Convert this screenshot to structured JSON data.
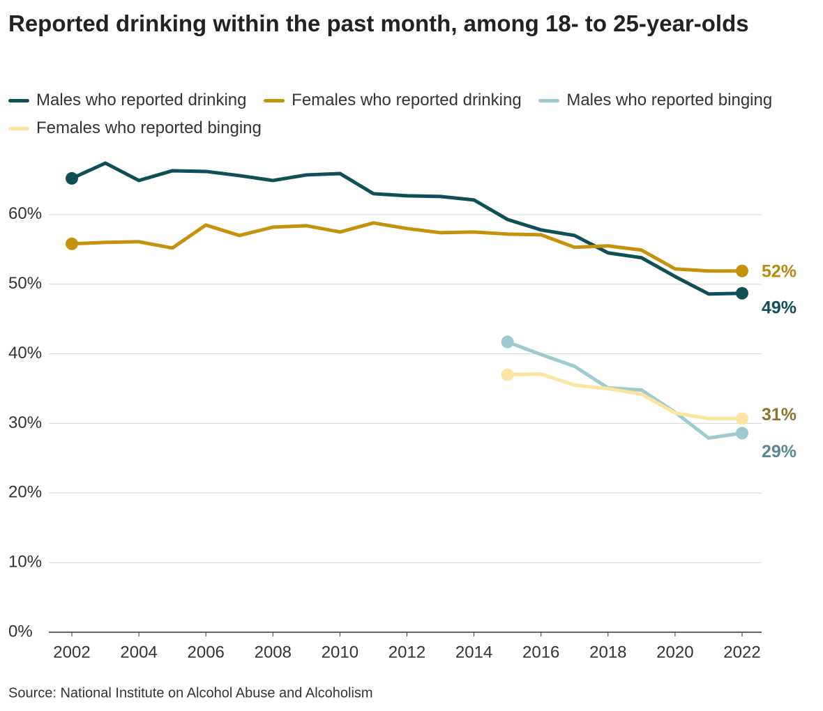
{
  "chart_data": {
    "type": "line",
    "title": "Reported drinking within the past month, among 18- to 25-year-olds",
    "source": "Source: National Institute on Alcohol Abuse and Alcoholism",
    "x": [
      2002,
      2003,
      2004,
      2005,
      2006,
      2007,
      2008,
      2009,
      2010,
      2011,
      2012,
      2013,
      2014,
      2015,
      2016,
      2017,
      2018,
      2019,
      2020,
      2021,
      2022
    ],
    "xlim": [
      2002,
      2022
    ],
    "xticks": [
      2002,
      2004,
      2006,
      2008,
      2010,
      2012,
      2014,
      2016,
      2018,
      2020,
      2022
    ],
    "ylim": [
      0,
      70
    ],
    "yticks": [
      {
        "value": 0,
        "label": "0%"
      },
      {
        "value": 10,
        "label": "10%"
      },
      {
        "value": 20,
        "label": "20%"
      },
      {
        "value": 30,
        "label": "30%"
      },
      {
        "value": 40,
        "label": "40%"
      },
      {
        "value": 50,
        "label": "50%"
      },
      {
        "value": 60,
        "label": "60%"
      }
    ],
    "grid": true,
    "series": [
      {
        "name": "Males who reported drinking",
        "color": "#0f4f57",
        "label_color": "#0f4f57",
        "values": [
          65.2,
          67.4,
          64.9,
          66.3,
          66.2,
          65.6,
          64.9,
          65.7,
          65.9,
          63.0,
          62.7,
          62.6,
          62.1,
          59.3,
          57.8,
          57.0,
          54.5,
          53.8,
          51.1,
          48.6,
          48.7
        ],
        "value_labels": [
          null,
          null,
          null,
          null,
          null,
          null,
          null,
          null,
          null,
          null,
          null,
          null,
          null,
          null,
          null,
          null,
          null,
          null,
          null,
          null,
          "49%"
        ]
      },
      {
        "name": "Females who reported drinking",
        "color": "#c4920c",
        "label_color": "#b78a12",
        "values": [
          55.8,
          56.0,
          56.1,
          55.2,
          58.5,
          57.0,
          58.2,
          58.4,
          57.5,
          58.8,
          58.0,
          57.4,
          57.5,
          57.2,
          57.1,
          55.3,
          55.5,
          54.9,
          52.2,
          51.9,
          51.9
        ],
        "value_labels": [
          null,
          null,
          null,
          null,
          null,
          null,
          null,
          null,
          null,
          null,
          null,
          null,
          null,
          null,
          null,
          null,
          null,
          null,
          null,
          null,
          "52%"
        ]
      },
      {
        "name": "Males who reported binging",
        "color": "#9ecbd0",
        "label_color": "#5a8891",
        "values": [
          null,
          null,
          null,
          null,
          null,
          null,
          null,
          null,
          null,
          null,
          null,
          null,
          null,
          41.7,
          39.9,
          38.2,
          35.1,
          34.8,
          31.6,
          27.9,
          28.6
        ],
        "value_labels": [
          null,
          null,
          null,
          null,
          null,
          null,
          null,
          null,
          null,
          null,
          null,
          null,
          null,
          null,
          null,
          null,
          null,
          null,
          null,
          null,
          "29%"
        ]
      },
      {
        "name": "Females who reported binging",
        "color": "#fde4a0",
        "label_color": "#8a7430",
        "values": [
          null,
          null,
          null,
          null,
          null,
          null,
          null,
          null,
          null,
          null,
          null,
          null,
          null,
          37.0,
          37.1,
          35.5,
          35.0,
          34.2,
          31.5,
          30.7,
          30.7
        ],
        "value_labels": [
          null,
          null,
          null,
          null,
          null,
          null,
          null,
          null,
          null,
          null,
          null,
          null,
          null,
          null,
          null,
          null,
          null,
          null,
          null,
          null,
          "31%"
        ]
      }
    ]
  }
}
